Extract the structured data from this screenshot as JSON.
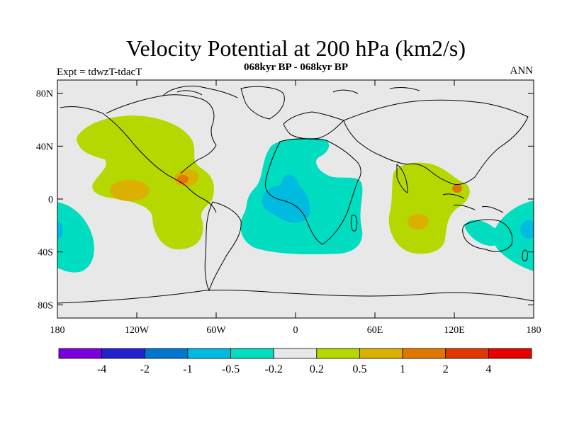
{
  "title": "Velocity Potential at 200 hPa (km2/s)",
  "subtitle": "068kyr BP - 068kyr BP",
  "left_label": "Expt = tdwzT-tdacT",
  "right_label": "ANN",
  "map": {
    "projection": "cylindrical equidistant",
    "lon_range": [
      -180,
      180
    ],
    "lat_range": [
      -90,
      90
    ],
    "background_color": "#e8e8e8",
    "lat_ticks": [
      "80N",
      "40N",
      "0",
      "40S",
      "80S"
    ],
    "lon_ticks": [
      "180",
      "120W",
      "60W",
      "0",
      "60E",
      "120E",
      "180"
    ]
  },
  "colorbar": {
    "colors": [
      "#7a00dd",
      "#2222cc",
      "#0077cc",
      "#00bbe0",
      "#00ddc0",
      "#e8e8e8",
      "#b5d800",
      "#dcb000",
      "#e07800",
      "#e03800",
      "#e60000"
    ],
    "labels": [
      "-4",
      "-2",
      "-1",
      "-0.5",
      "-0.2",
      "0.2",
      "0.5",
      "1",
      "2",
      "4"
    ]
  },
  "anomaly_regions": [
    {
      "name": "eastern-pacific-positive",
      "level": "0.2 to 0.5",
      "color": "#b5d800"
    },
    {
      "name": "eastern-pacific-core",
      "level": "0.5 to 1",
      "color": "#dcb000"
    },
    {
      "name": "caribbean-core",
      "level": "0.5 to 1",
      "color": "#dcb000"
    },
    {
      "name": "caribbean-peak",
      "level": "1 to 2",
      "color": "#e07800"
    },
    {
      "name": "atlantic-africa-negative",
      "level": "-0.5 to -0.2",
      "color": "#00ddc0"
    },
    {
      "name": "gulf-of-guinea-core",
      "level": "-1 to -0.5",
      "color": "#00bbe0"
    },
    {
      "name": "indian-ocean-positive",
      "level": "0.2 to 0.5",
      "color": "#b5d800"
    },
    {
      "name": "indian-ocean-core",
      "level": "0.5 to 1",
      "color": "#dcb000"
    },
    {
      "name": "maritime-continent-peak",
      "level": "1 to 2",
      "color": "#e07800"
    },
    {
      "name": "western-pacific-negative",
      "level": "-0.5 to -0.2",
      "color": "#00ddc0"
    },
    {
      "name": "western-pacific-core",
      "level": "-1 to -0.5",
      "color": "#00bbe0"
    }
  ]
}
